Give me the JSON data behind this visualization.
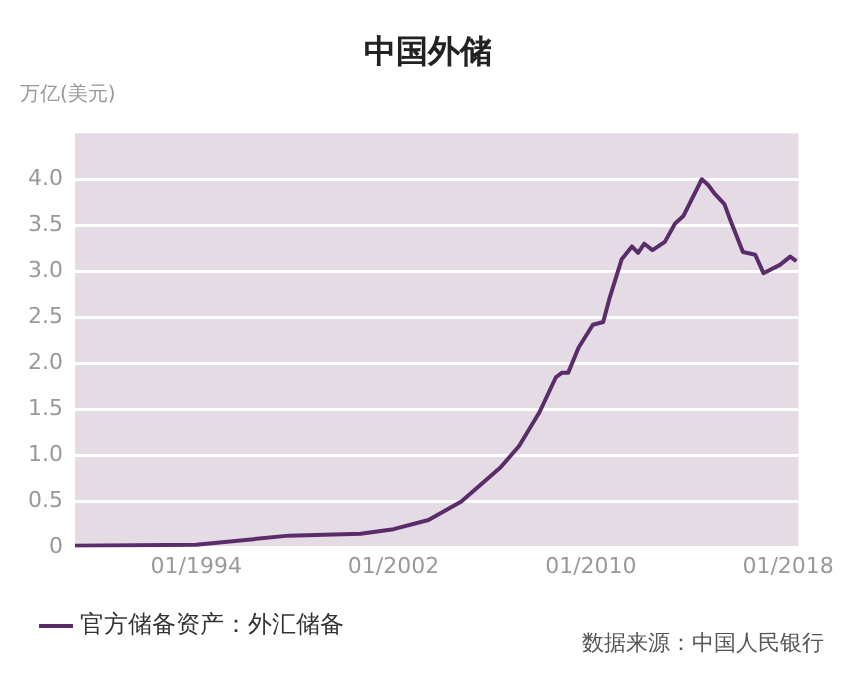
{
  "chart_data": {
    "type": "line",
    "title": "中国外储",
    "ylabel": "万亿(美元)",
    "annotations": [
      "数据来源：中国人民银行"
    ],
    "x": [
      "1989-02",
      "1994-01",
      "1997-10",
      "2000-09",
      "2002-01",
      "2003-06",
      "2004-10",
      "2006-05",
      "2007-02",
      "2007-12",
      "2008-08",
      "2008-11",
      "2009-02",
      "2009-07",
      "2010-02",
      "2010-07",
      "2010-10",
      "2011-04",
      "2011-09",
      "2011-12",
      "2012-03",
      "2012-07",
      "2013-01",
      "2013-06",
      "2013-10",
      "2014-07",
      "2014-10",
      "2015-01",
      "2015-06",
      "2015-09",
      "2016-03",
      "2016-09",
      "2017-01",
      "2017-09",
      "2018-02",
      "2018-05"
    ],
    "series": [
      {
        "name": "官方储备资产：外汇储备",
        "color": "#5a2d6a",
        "values": [
          0.02,
          0.03,
          0.13,
          0.15,
          0.2,
          0.3,
          0.5,
          0.87,
          1.1,
          1.47,
          1.85,
          1.9,
          1.9,
          2.17,
          2.42,
          2.45,
          2.7,
          3.13,
          3.27,
          3.2,
          3.3,
          3.23,
          3.32,
          3.52,
          3.6,
          4.0,
          3.94,
          3.85,
          3.73,
          3.55,
          3.21,
          3.18,
          2.98,
          3.07,
          3.16,
          3.11
        ]
      }
    ],
    "xlim": [
      "1989-02",
      "2018-06"
    ],
    "xticks": [
      {
        "value": "1994-01",
        "label": "01/1994"
      },
      {
        "value": "2002-01",
        "label": "01/2002"
      },
      {
        "value": "2010-01",
        "label": "01/2010"
      },
      {
        "value": "2018-01",
        "label": "01/2018"
      }
    ],
    "ylim": [
      0,
      4.5
    ],
    "yticks": [
      0,
      0.5,
      {
        "value": 1,
        "label": "1.0"
      },
      1.5,
      {
        "value": 2,
        "label": "2.0"
      },
      2.5,
      {
        "value": 3,
        "label": "3.0"
      },
      3.5,
      {
        "value": 4,
        "label": "4.0"
      }
    ],
    "grid": "y",
    "legend": "bottom left",
    "marker": "none",
    "line_style": "solid"
  }
}
